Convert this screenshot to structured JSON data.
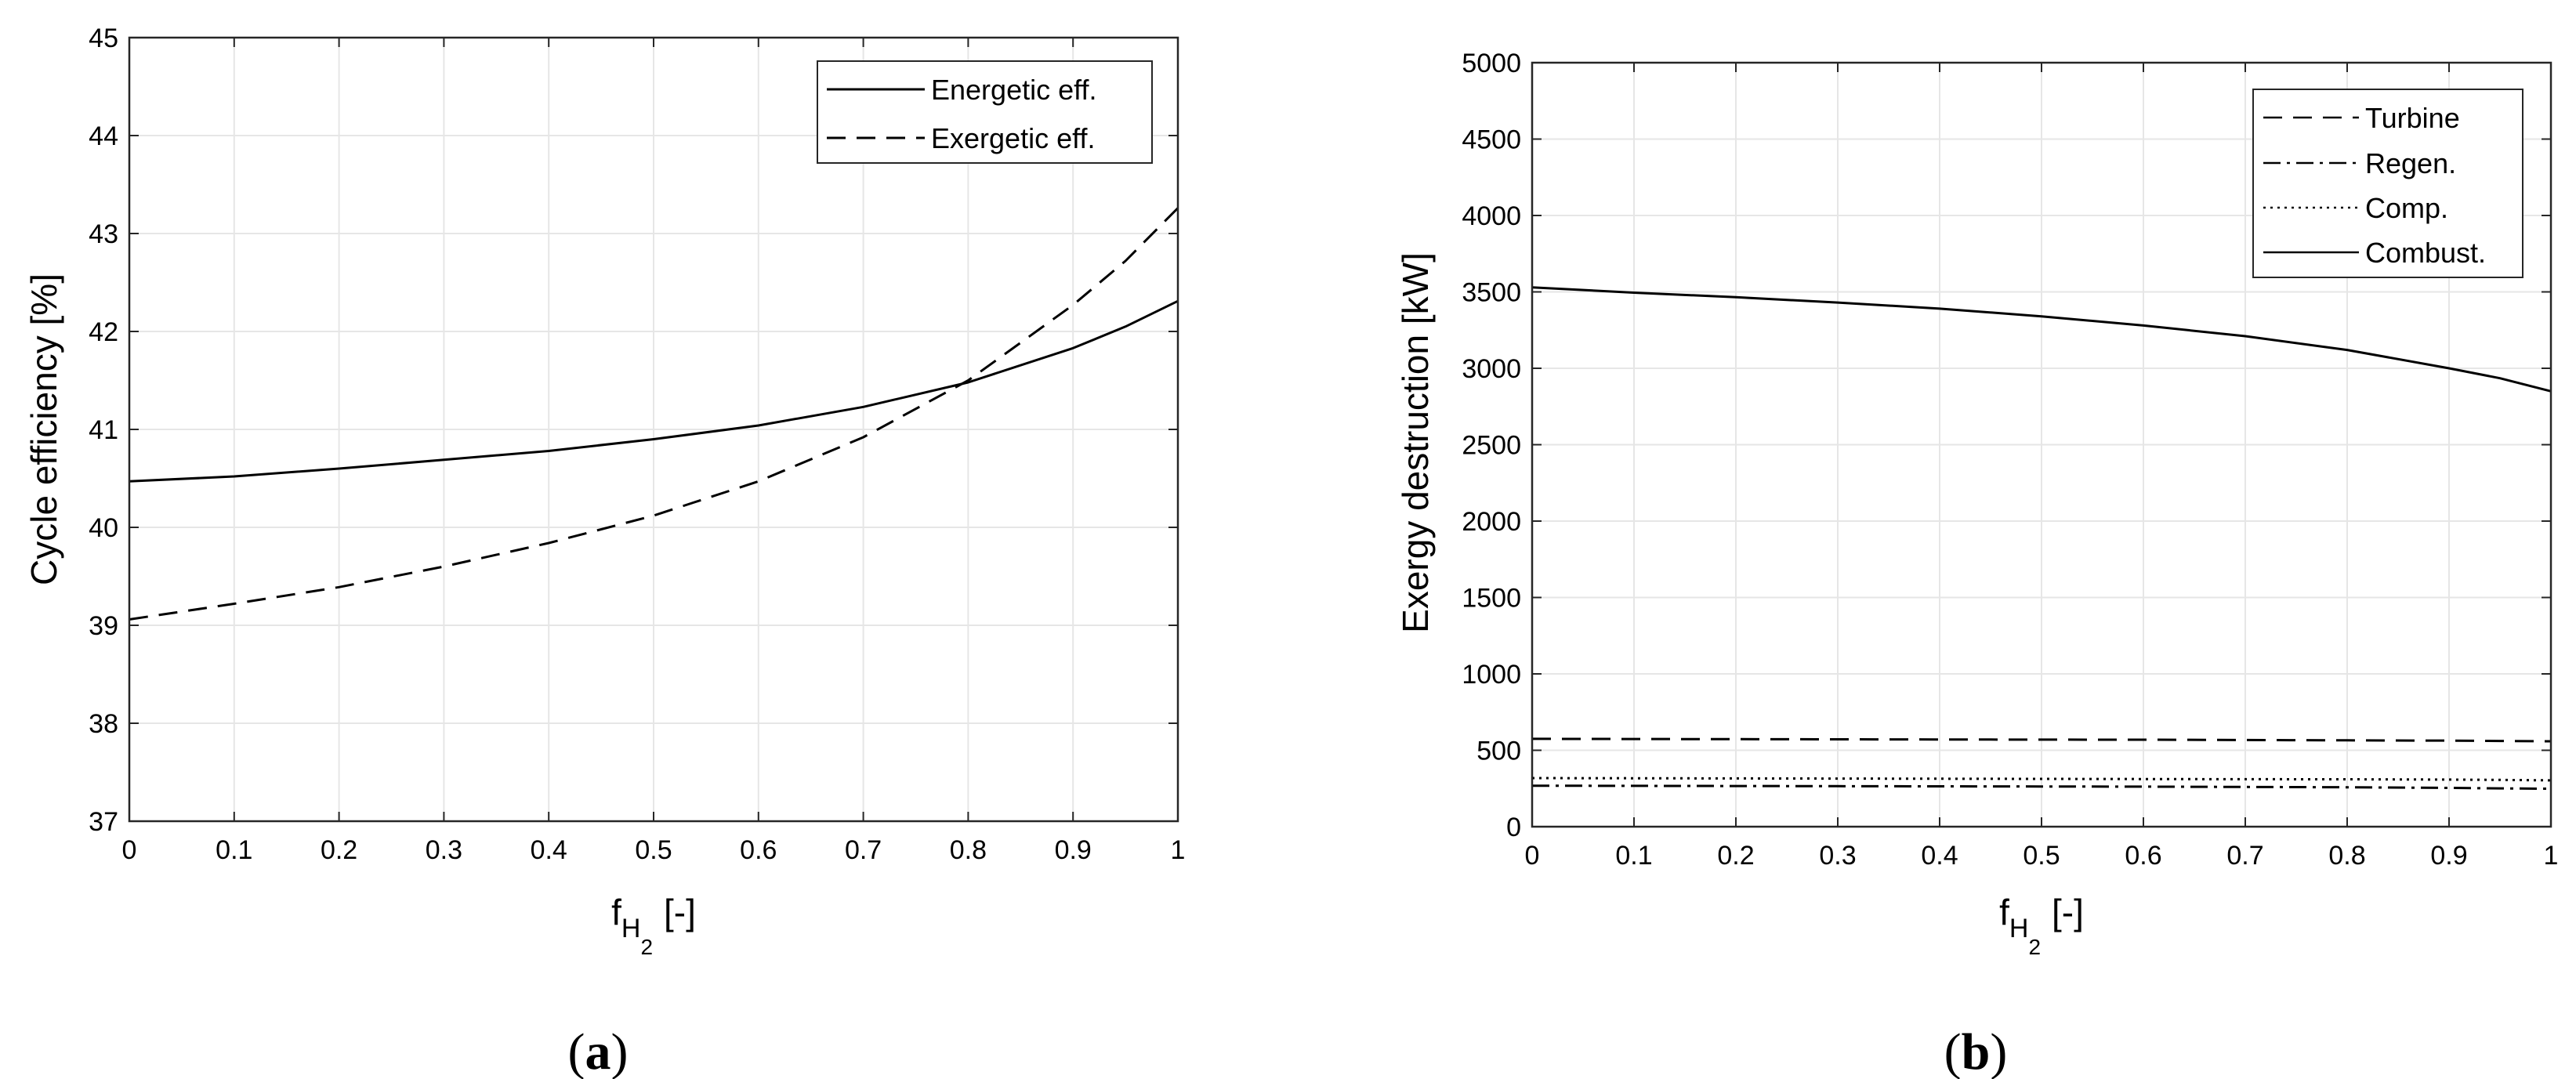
{
  "chart_data": [
    {
      "type": "line",
      "panel_label": "a",
      "xlabel": {
        "base": "f",
        "sub1": "H",
        "sub2": "2",
        "suffix": "[-]"
      },
      "ylabel": "Cycle efficiency [%]",
      "xlim": [
        0,
        1
      ],
      "ylim": [
        37,
        45
      ],
      "xticks": [
        0,
        0.1,
        0.2,
        0.3,
        0.4,
        0.5,
        0.6,
        0.7,
        0.8,
        0.9,
        1
      ],
      "xtick_labels": [
        "0",
        "0.1",
        "0.2",
        "0.3",
        "0.4",
        "0.5",
        "0.6",
        "0.7",
        "0.8",
        "0.9",
        "1"
      ],
      "yticks": [
        37,
        38,
        39,
        40,
        41,
        42,
        43,
        44,
        45
      ],
      "ytick_labels": [
        "37",
        "38",
        "39",
        "40",
        "41",
        "42",
        "43",
        "44",
        "45"
      ],
      "grid": true,
      "legend_position": "top-right",
      "x": [
        0,
        0.1,
        0.2,
        0.3,
        0.4,
        0.5,
        0.6,
        0.7,
        0.8,
        0.9,
        0.95,
        1
      ],
      "series": [
        {
          "name": "Energetic eff.",
          "style": "solid",
          "values": [
            40.47,
            40.52,
            40.6,
            40.69,
            40.78,
            40.9,
            41.04,
            41.23,
            41.48,
            41.83,
            42.05,
            42.31
          ]
        },
        {
          "name": "Exergetic eff.",
          "style": "dashed",
          "values": [
            39.06,
            39.22,
            39.39,
            39.6,
            39.84,
            40.12,
            40.47,
            40.92,
            41.5,
            42.27,
            42.72,
            43.26
          ]
        }
      ]
    },
    {
      "type": "line",
      "panel_label": "b",
      "xlabel": {
        "base": "f",
        "sub1": "H",
        "sub2": "2",
        "suffix": "[-]"
      },
      "ylabel": "Exergy destruction [kW]",
      "xlim": [
        0,
        1
      ],
      "ylim": [
        0,
        5000
      ],
      "xticks": [
        0,
        0.1,
        0.2,
        0.3,
        0.4,
        0.5,
        0.6,
        0.7,
        0.8,
        0.9,
        1
      ],
      "xtick_labels": [
        "0",
        "0.1",
        "0.2",
        "0.3",
        "0.4",
        "0.5",
        "0.6",
        "0.7",
        "0.8",
        "0.9",
        "1"
      ],
      "yticks": [
        0,
        500,
        1000,
        1500,
        2000,
        2500,
        3000,
        3500,
        4000,
        4500,
        5000
      ],
      "ytick_labels": [
        "0",
        "500",
        "1000",
        "1500",
        "2000",
        "2500",
        "3000",
        "3500",
        "4000",
        "4500",
        "5000"
      ],
      "grid": true,
      "legend_position": "top-right",
      "x": [
        0,
        0.1,
        0.2,
        0.3,
        0.4,
        0.5,
        0.6,
        0.7,
        0.8,
        0.9,
        0.95,
        1
      ],
      "series": [
        {
          "name": "Turbine",
          "style": "dashed",
          "values": [
            575,
            574,
            573,
            572,
            571,
            570,
            569,
            567,
            565,
            563,
            561,
            559
          ]
        },
        {
          "name": "Regen.",
          "style": "dashdot",
          "values": [
            268,
            267,
            266,
            265,
            264,
            263,
            262,
            260,
            258,
            254,
            251,
            248
          ]
        },
        {
          "name": "Comp.",
          "style": "dotted",
          "values": [
            318,
            317,
            316,
            315,
            314,
            313,
            312,
            311,
            310,
            308,
            306,
            303
          ]
        },
        {
          "name": "Combust.",
          "style": "solid",
          "values": [
            3530,
            3495,
            3465,
            3430,
            3390,
            3340,
            3280,
            3210,
            3120,
            3000,
            2935,
            2850
          ]
        }
      ]
    }
  ]
}
